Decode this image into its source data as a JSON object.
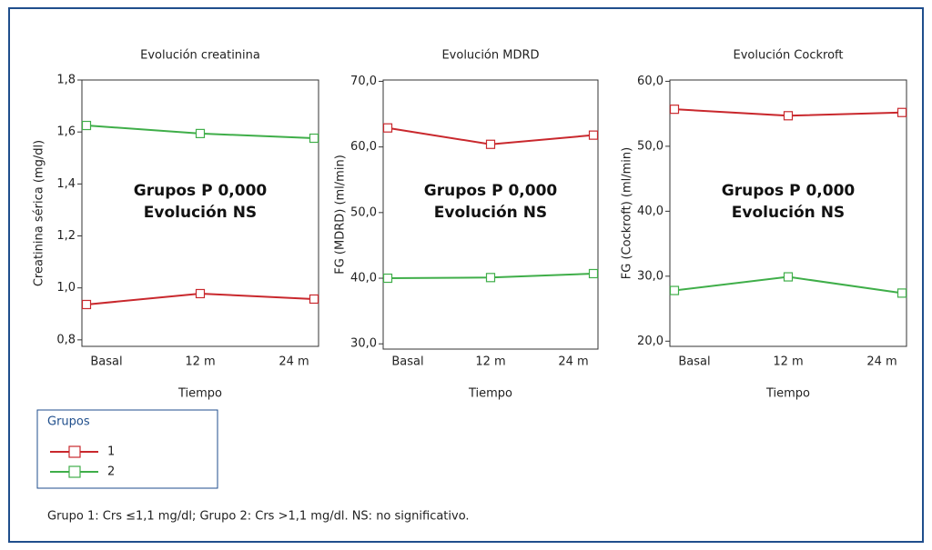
{
  "chart_data": [
    {
      "type": "line",
      "title": "Evolución creatinina",
      "x_label": "Tiempo",
      "y_label": "Creatinina sérica (mg/dl)",
      "categories": [
        "Basal",
        "12 m",
        "24 m"
      ],
      "series": [
        {
          "name": "1",
          "color": "#c9282d",
          "values": [
            0.936,
            0.978,
            0.957
          ]
        },
        {
          "name": "2",
          "color": "#3fae49",
          "values": [
            1.625,
            1.594,
            1.576
          ]
        }
      ],
      "ylim": [
        0.775,
        1.8
      ],
      "yticks": [
        {
          "value": 0.8,
          "label": "0,8"
        },
        {
          "value": 1.0,
          "label": "1,0"
        },
        {
          "value": 1.2,
          "label": "1,2"
        },
        {
          "value": 1.4,
          "label": "1,4"
        },
        {
          "value": 1.6,
          "label": "1,6"
        },
        {
          "value": 1.8,
          "label": "1,8"
        }
      ],
      "annotations": [
        "Grupos P 0,000",
        "Evolución NS"
      ]
    },
    {
      "type": "line",
      "title": "Evolución MDRD",
      "x_label": "Tiempo",
      "y_label": "FG (MDRD) (ml/min)",
      "categories": [
        "Basal",
        "12 m",
        "24 m"
      ],
      "series": [
        {
          "name": "1",
          "color": "#c9282d",
          "values": [
            62.9,
            60.4,
            61.8
          ]
        },
        {
          "name": "2",
          "color": "#3fae49",
          "values": [
            40.0,
            40.1,
            40.7
          ]
        }
      ],
      "ylim": [
        29.2,
        70.2
      ],
      "yticks": [
        {
          "value": 30,
          "label": "30,0"
        },
        {
          "value": 40,
          "label": "40,0"
        },
        {
          "value": 50,
          "label": "50,0"
        },
        {
          "value": 60,
          "label": "60,0"
        },
        {
          "value": 70,
          "label": "70,0"
        }
      ],
      "annotations": [
        "Grupos P 0,000",
        "Evolución NS"
      ]
    },
    {
      "type": "line",
      "title": "Evolución Cockroft",
      "x_label": "Tiempo",
      "y_label": "FG (Cockroft) (ml/min)",
      "categories": [
        "Basal",
        "12 m",
        "24 m"
      ],
      "series": [
        {
          "name": "1",
          "color": "#c9282d",
          "values": [
            55.7,
            54.7,
            55.2
          ]
        },
        {
          "name": "2",
          "color": "#3fae49",
          "values": [
            27.8,
            29.9,
            27.4
          ]
        }
      ],
      "ylim": [
        19.2,
        60.2
      ],
      "yticks": [
        {
          "value": 20,
          "label": "20,0"
        },
        {
          "value": 30,
          "label": "30,0"
        },
        {
          "value": 40,
          "label": "40,0"
        },
        {
          "value": 50,
          "label": "50,0"
        },
        {
          "value": 60,
          "label": "60,0"
        }
      ],
      "annotations": [
        "Grupos P 0,000",
        "Evolución NS"
      ]
    }
  ],
  "legend": {
    "title": "Grupos"
  },
  "footnote": "Grupo 1: Crs ≤1,1 mg/dl; Grupo 2: Crs >1,1 mg/dl. NS: no significativo."
}
